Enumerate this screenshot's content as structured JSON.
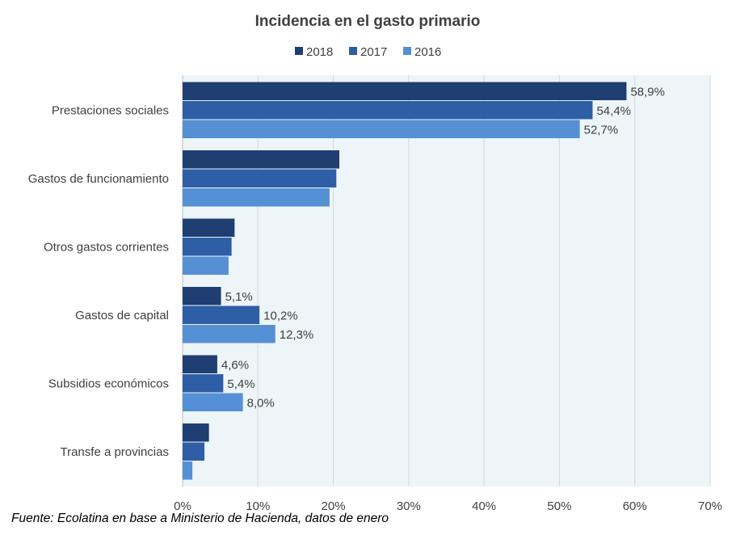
{
  "chart_data": {
    "type": "bar",
    "orientation": "horizontal",
    "title": "Incidencia en el gasto primario",
    "categories": [
      "Prestaciones sociales",
      "Gastos de funcionamiento",
      "Otros gastos corrientes",
      "Gastos de capital",
      "Subsidios económicos",
      "Transfe a provincias"
    ],
    "series": [
      {
        "name": "2018",
        "color": "#1f3f73",
        "values": [
          58.9,
          20.8,
          6.9,
          5.1,
          4.6,
          3.5
        ],
        "labels": [
          "58,9%",
          "",
          "",
          "5,1%",
          "4,6%",
          ""
        ]
      },
      {
        "name": "2017",
        "color": "#2e5ea6",
        "values": [
          54.4,
          20.4,
          6.5,
          10.2,
          5.4,
          2.9
        ],
        "labels": [
          "54,4%",
          "",
          "",
          "10,2%",
          "5,4%",
          ""
        ]
      },
      {
        "name": "2016",
        "color": "#5590d4",
        "values": [
          52.7,
          19.5,
          6.1,
          12.3,
          8.0,
          1.3
        ],
        "labels": [
          "52,7%",
          "",
          "",
          "12,3%",
          "8,0%",
          ""
        ]
      }
    ],
    "xlim": [
      0,
      70
    ],
    "xticks": [
      0,
      10,
      20,
      30,
      40,
      50,
      60,
      70
    ],
    "xtick_labels": [
      "0%",
      "10%",
      "20%",
      "30%",
      "40%",
      "50%",
      "60%",
      "70%"
    ],
    "grid": "vertical",
    "legend_position": "top",
    "plot_background": "#edf5f8"
  },
  "source_note": "Fuente: Ecolatina en base a Ministerio de Hacienda, datos de enero"
}
